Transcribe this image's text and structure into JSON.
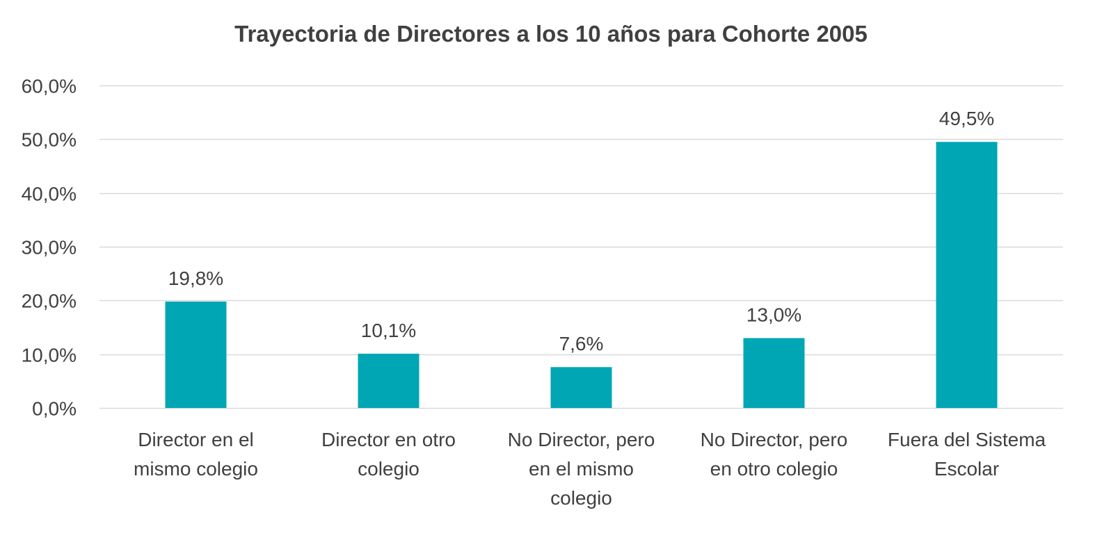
{
  "chart_data": {
    "type": "bar",
    "title": "Trayectoria de Directores a los 10 años para Cohorte 2005",
    "xlabel": "",
    "ylabel": "",
    "categories": [
      "Director en el\nmismo colegio",
      "Director en otro\ncolegio",
      "No Director, pero\nen el mismo\ncolegio",
      "No Director, pero\nen otro colegio",
      "Fuera del Sistema\nEscolar"
    ],
    "values": [
      19.8,
      10.1,
      7.6,
      13.0,
      49.5
    ],
    "data_labels": [
      "19,8%",
      "10,1%",
      "7,6%",
      "13,0%",
      "49,5%"
    ],
    "ylim": [
      0,
      60
    ],
    "y_ticks": [
      0,
      10,
      20,
      30,
      40,
      50,
      60
    ],
    "y_tick_labels": [
      "0,0%",
      "10,0%",
      "20,0%",
      "30,0%",
      "40,0%",
      "50,0%",
      "60,0%"
    ],
    "grid": true,
    "legend": "none",
    "colors": {
      "bar": "#00A6B4",
      "grid": "#D9D9D9",
      "text": "#404040"
    }
  }
}
